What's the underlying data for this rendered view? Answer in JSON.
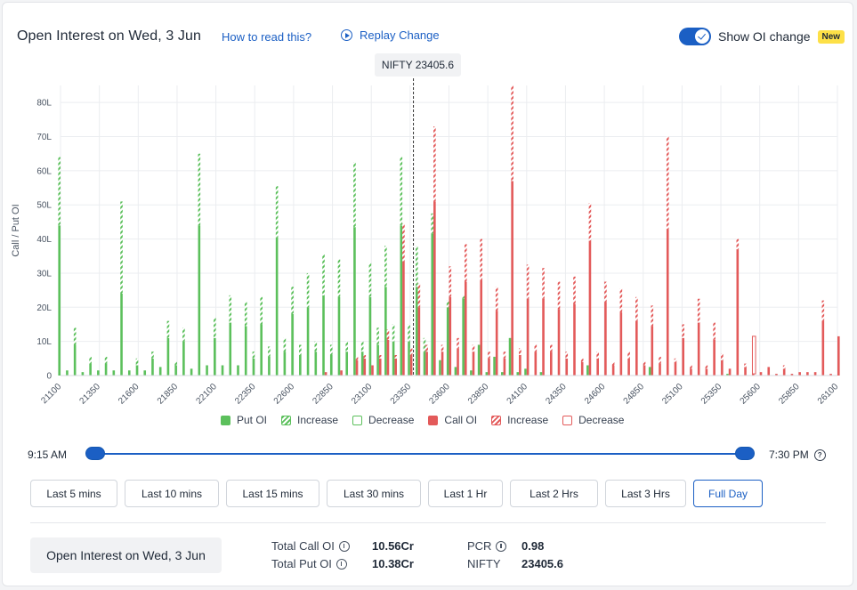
{
  "header": {
    "title": "Open Interest on Wed, 3 Jun",
    "how_to_read": "How to read this?",
    "replay": "Replay Change",
    "toggle_label": "Show OI change",
    "new_badge": "New"
  },
  "tooltip": {
    "spot_label": "NIFTY 23405.6"
  },
  "chart_data": {
    "type": "bar",
    "ylabel": "Call / Put OI",
    "ylim": [
      0,
      85
    ],
    "y_ticks": [
      "0",
      "10L",
      "20L",
      "30L",
      "40L",
      "50L",
      "60L",
      "70L",
      "80L"
    ],
    "y_tick_values": [
      0,
      10,
      20,
      30,
      40,
      50,
      60,
      70,
      80
    ],
    "x_tick_labels": [
      "21100",
      "21350",
      "21600",
      "21850",
      "22100",
      "22350",
      "22600",
      "22850",
      "23100",
      "23350",
      "23600",
      "23850",
      "24100",
      "24350",
      "24600",
      "24850",
      "25100",
      "25350",
      "25600",
      "25850",
      "26100"
    ],
    "xlim": [
      21100,
      26100
    ],
    "spot": 23405.6,
    "grid": true,
    "legend_position": "bottom",
    "colors": {
      "put": "#5cc05c",
      "call": "#e35a5a",
      "spot_line": "#333333"
    },
    "legend": [
      "Put OI",
      "Increase",
      "Decrease",
      "Call OI",
      "Increase",
      "Decrease"
    ],
    "put_oi": [
      {
        "strike": 21100,
        "oi": 64,
        "change": 20
      },
      {
        "strike": 21150,
        "oi": 1.5,
        "change": 0
      },
      {
        "strike": 21200,
        "oi": 14,
        "change": 5
      },
      {
        "strike": 21250,
        "oi": 1,
        "change": 0
      },
      {
        "strike": 21300,
        "oi": 5.5,
        "change": 2
      },
      {
        "strike": 21350,
        "oi": 1.5,
        "change": 0
      },
      {
        "strike": 21400,
        "oi": 5.5,
        "change": 2
      },
      {
        "strike": 21450,
        "oi": 1.5,
        "change": 0
      },
      {
        "strike": 21500,
        "oi": 51,
        "change": 27
      },
      {
        "strike": 21550,
        "oi": 1.5,
        "change": 0
      },
      {
        "strike": 21600,
        "oi": 5,
        "change": 2
      },
      {
        "strike": 21650,
        "oi": 1.5,
        "change": 0
      },
      {
        "strike": 21700,
        "oi": 7,
        "change": 2
      },
      {
        "strike": 21750,
        "oi": 2.5,
        "change": 0
      },
      {
        "strike": 21800,
        "oi": 16,
        "change": 5
      },
      {
        "strike": 21850,
        "oi": 4,
        "change": 1
      },
      {
        "strike": 21900,
        "oi": 14,
        "change": 4
      },
      {
        "strike": 21950,
        "oi": 2,
        "change": 0
      },
      {
        "strike": 22000,
        "oi": 65,
        "change": 21
      },
      {
        "strike": 22050,
        "oi": 3,
        "change": 0
      },
      {
        "strike": 22100,
        "oi": 17,
        "change": 6
      },
      {
        "strike": 22150,
        "oi": 3,
        "change": 0
      },
      {
        "strike": 22200,
        "oi": 23.5,
        "change": 8
      },
      {
        "strike": 22250,
        "oi": 3,
        "change": 0
      },
      {
        "strike": 22300,
        "oi": 21.5,
        "change": 7
      },
      {
        "strike": 22350,
        "oi": 7,
        "change": 2
      },
      {
        "strike": 22400,
        "oi": 23,
        "change": 8
      },
      {
        "strike": 22450,
        "oi": 8.5,
        "change": 3
      },
      {
        "strike": 22500,
        "oi": 55.5,
        "change": 15
      },
      {
        "strike": 22550,
        "oi": 11,
        "change": 4
      },
      {
        "strike": 22600,
        "oi": 26,
        "change": 8
      },
      {
        "strike": 22650,
        "oi": 9,
        "change": 3
      },
      {
        "strike": 22700,
        "oi": 30,
        "change": 10
      },
      {
        "strike": 22750,
        "oi": 10,
        "change": 3
      },
      {
        "strike": 22800,
        "oi": 35.5,
        "change": 12
      },
      {
        "strike": 22850,
        "oi": 9,
        "change": 3
      },
      {
        "strike": 22900,
        "oi": 34,
        "change": 11
      },
      {
        "strike": 22950,
        "oi": 10,
        "change": 3
      },
      {
        "strike": 23000,
        "oi": 62.5,
        "change": 19
      },
      {
        "strike": 23050,
        "oi": 10,
        "change": 3
      },
      {
        "strike": 23100,
        "oi": 33,
        "change": 10
      },
      {
        "strike": 23150,
        "oi": 14,
        "change": 5
      },
      {
        "strike": 23200,
        "oi": 38,
        "change": 12
      },
      {
        "strike": 23250,
        "oi": 15,
        "change": 5
      },
      {
        "strike": 23300,
        "oi": 64,
        "change": 20
      },
      {
        "strike": 23350,
        "oi": 15,
        "change": 5
      },
      {
        "strike": 23400,
        "oi": 38,
        "change": 12
      },
      {
        "strike": 23450,
        "oi": 11,
        "change": 4
      },
      {
        "strike": 23500,
        "oi": 47.5,
        "change": 6
      },
      {
        "strike": 23550,
        "oi": 4.5,
        "change": 0
      },
      {
        "strike": 23600,
        "oi": 22,
        "change": 2
      },
      {
        "strike": 23650,
        "oi": 2.5,
        "change": 0
      },
      {
        "strike": 23700,
        "oi": 23.5,
        "change": 1
      },
      {
        "strike": 23750,
        "oi": 1.5,
        "change": 0
      },
      {
        "strike": 23800,
        "oi": 9,
        "change": 0
      },
      {
        "strike": 23850,
        "oi": 1,
        "change": 0
      },
      {
        "strike": 23900,
        "oi": 5.5,
        "change": 0
      },
      {
        "strike": 23950,
        "oi": 1,
        "change": 0
      },
      {
        "strike": 24000,
        "oi": 11,
        "change": 0
      },
      {
        "strike": 24050,
        "oi": 1,
        "change": 0
      },
      {
        "strike": 24100,
        "oi": 2,
        "change": 0
      },
      {
        "strike": 24200,
        "oi": 1,
        "change": 0
      },
      {
        "strike": 24500,
        "oi": 3,
        "change": 0
      },
      {
        "strike": 24900,
        "oi": 2.5,
        "change": 0
      },
      {
        "strike": 25400,
        "oi": 0.5,
        "change": 0
      }
    ],
    "call_oi": [
      {
        "strike": 22800,
        "oi": 1,
        "change": 0
      },
      {
        "strike": 22900,
        "oi": 1.5,
        "change": 0
      },
      {
        "strike": 23000,
        "oi": 5.5,
        "change": 1
      },
      {
        "strike": 23050,
        "oi": 6,
        "change": 1
      },
      {
        "strike": 23100,
        "oi": 3,
        "change": 0
      },
      {
        "strike": 23150,
        "oi": 6,
        "change": 1
      },
      {
        "strike": 23200,
        "oi": 13.5,
        "change": 3
      },
      {
        "strike": 23250,
        "oi": 6,
        "change": 1
      },
      {
        "strike": 23300,
        "oi": 44.5,
        "change": 11
      },
      {
        "strike": 23350,
        "oi": 8,
        "change": 2
      },
      {
        "strike": 23400,
        "oi": 27,
        "change": 7
      },
      {
        "strike": 23450,
        "oi": 9,
        "change": 2
      },
      {
        "strike": 23500,
        "oi": 73,
        "change": 22
      },
      {
        "strike": 23550,
        "oi": 9,
        "change": 2
      },
      {
        "strike": 23600,
        "oi": 32,
        "change": 9
      },
      {
        "strike": 23650,
        "oi": 11,
        "change": 3
      },
      {
        "strike": 23700,
        "oi": 38.5,
        "change": 11
      },
      {
        "strike": 23750,
        "oi": 9,
        "change": 2
      },
      {
        "strike": 23800,
        "oi": 40,
        "change": 12
      },
      {
        "strike": 23850,
        "oi": 7,
        "change": 2
      },
      {
        "strike": 23900,
        "oi": 26,
        "change": 7
      },
      {
        "strike": 23950,
        "oi": 7,
        "change": 2
      },
      {
        "strike": 24000,
        "oi": 85,
        "change": 28
      },
      {
        "strike": 24050,
        "oi": 8,
        "change": 2
      },
      {
        "strike": 24100,
        "oi": 32.5,
        "change": 10
      },
      {
        "strike": 24150,
        "oi": 9,
        "change": 2
      },
      {
        "strike": 24200,
        "oi": 31.5,
        "change": 9
      },
      {
        "strike": 24250,
        "oi": 9,
        "change": 2
      },
      {
        "strike": 24300,
        "oi": 27.5,
        "change": 8
      },
      {
        "strike": 24350,
        "oi": 7,
        "change": 2
      },
      {
        "strike": 24400,
        "oi": 29,
        "change": 8
      },
      {
        "strike": 24450,
        "oi": 5,
        "change": 1
      },
      {
        "strike": 24500,
        "oi": 50.5,
        "change": 11
      },
      {
        "strike": 24550,
        "oi": 7,
        "change": 2
      },
      {
        "strike": 24600,
        "oi": 27.5,
        "change": 6
      },
      {
        "strike": 24650,
        "oi": 4,
        "change": 1
      },
      {
        "strike": 24700,
        "oi": 25.5,
        "change": 7
      },
      {
        "strike": 24750,
        "oi": 7,
        "change": 2
      },
      {
        "strike": 24800,
        "oi": 23,
        "change": 7
      },
      {
        "strike": 24850,
        "oi": 4,
        "change": 1
      },
      {
        "strike": 24900,
        "oi": 20.5,
        "change": 6
      },
      {
        "strike": 24950,
        "oi": 5.5,
        "change": 2
      },
      {
        "strike": 25000,
        "oi": 70,
        "change": 27
      },
      {
        "strike": 25050,
        "oi": 5,
        "change": 1
      },
      {
        "strike": 25100,
        "oi": 15,
        "change": 4
      },
      {
        "strike": 25150,
        "oi": 3,
        "change": 1
      },
      {
        "strike": 25200,
        "oi": 22.5,
        "change": 7
      },
      {
        "strike": 25250,
        "oi": 3,
        "change": 1
      },
      {
        "strike": 25300,
        "oi": 15.5,
        "change": 5
      },
      {
        "strike": 25350,
        "oi": 6.5,
        "change": 2
      },
      {
        "strike": 25400,
        "oi": 2,
        "change": 0
      },
      {
        "strike": 25450,
        "oi": 40,
        "change": 3
      },
      {
        "strike": 25500,
        "oi": 3.5,
        "change": 1
      },
      {
        "strike": 25550,
        "oi": 11.5,
        "change": -11
      },
      {
        "strike": 25600,
        "oi": 1,
        "change": 0
      },
      {
        "strike": 25650,
        "oi": 2.5,
        "change": 0
      },
      {
        "strike": 25700,
        "oi": 0.5,
        "change": 0
      },
      {
        "strike": 25750,
        "oi": 3,
        "change": 1
      },
      {
        "strike": 25800,
        "oi": 0.5,
        "change": 0
      },
      {
        "strike": 25850,
        "oi": 1,
        "change": 0
      },
      {
        "strike": 25900,
        "oi": 1,
        "change": 0
      },
      {
        "strike": 25950,
        "oi": 1,
        "change": 0
      },
      {
        "strike": 26000,
        "oi": 22,
        "change": 6
      },
      {
        "strike": 26050,
        "oi": 0.5,
        "change": 0
      },
      {
        "strike": 26100,
        "oi": 11.5,
        "change": 0
      }
    ]
  },
  "legend": {
    "put_oi": "Put OI",
    "put_increase": "Increase",
    "put_decrease": "Decrease",
    "call_oi": "Call OI",
    "call_increase": "Increase",
    "call_decrease": "Decrease"
  },
  "time_range": {
    "start": "9:15 AM",
    "end": "7:30 PM",
    "start_fraction": 0,
    "end_fraction": 1
  },
  "range_buttons": [
    "Last 5 mins",
    "Last 10 mins",
    "Last 15 mins",
    "Last 30 mins",
    "Last 1 Hr",
    "Last 2 Hrs",
    "Last 3 Hrs",
    "Full Day"
  ],
  "active_range": "Full Day",
  "summary": {
    "button": "Open Interest on Wed, 3 Jun",
    "total_call_label": "Total Call OI",
    "total_call_value": "10.56Cr",
    "total_put_label": "Total Put OI",
    "total_put_value": "10.38Cr",
    "pcr_label": "PCR",
    "pcr_value": "0.98",
    "nifty_label": "NIFTY",
    "nifty_value": "23405.6"
  }
}
